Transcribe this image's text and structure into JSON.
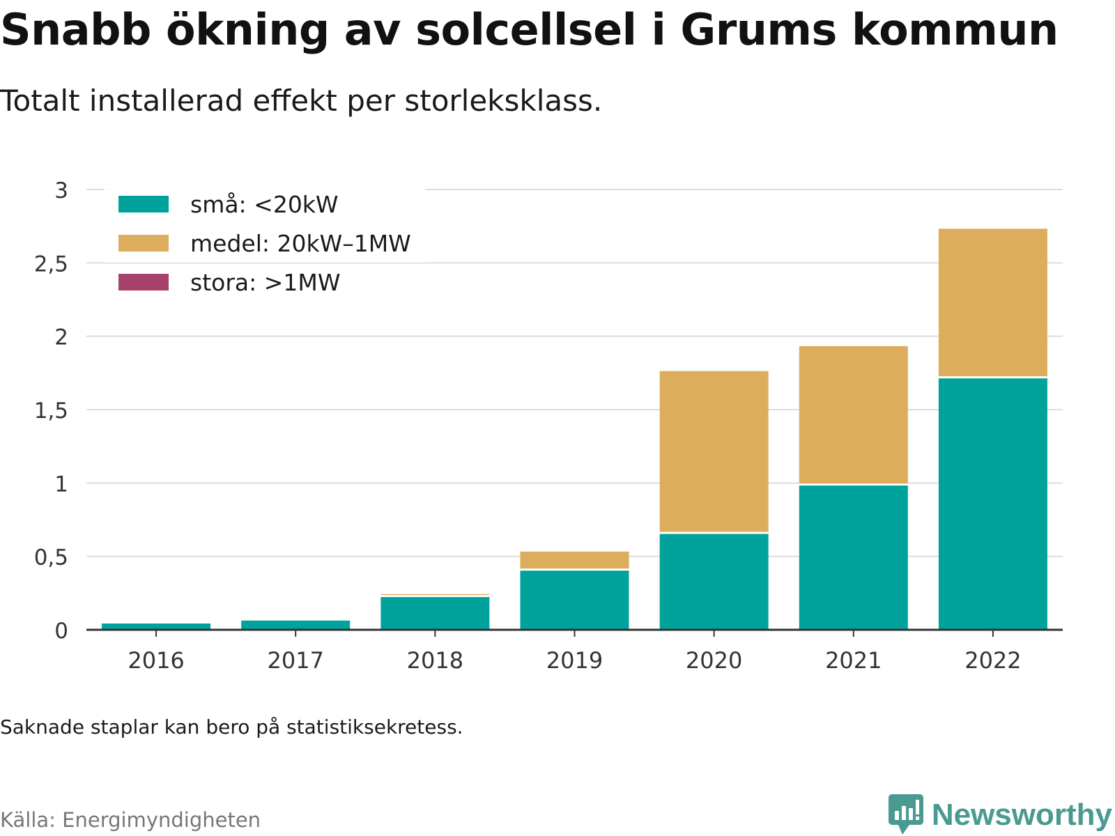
{
  "header": {
    "title": "Snabb ökning av solcellsel i Grums kommun",
    "subtitle": "Totalt installerad effekt per storleksklass."
  },
  "footer": {
    "note": "Saknade staplar kan bero på statistiksekretess.",
    "source": "Källa: Energimyndigheten",
    "brand": "Newsworthy"
  },
  "colors": {
    "small": "#00a39b",
    "medium": "#dcad5c",
    "large": "#a6416b",
    "brand": "#4a9a92",
    "grid": "#dddddd",
    "axis": "#333333"
  },
  "chart_data": {
    "type": "bar",
    "stacked": true,
    "categories": [
      "2016",
      "2017",
      "2018",
      "2019",
      "2020",
      "2021",
      "2022"
    ],
    "series": [
      {
        "name": "små: <20kW",
        "color": "#00a39b",
        "values": [
          0.05,
          0.07,
          0.23,
          0.41,
          0.66,
          0.99,
          1.72
        ]
      },
      {
        "name": "medel: 20kW–1MW",
        "color": "#dcad5c",
        "values": [
          0,
          0,
          0.02,
          0.13,
          1.11,
          0.95,
          1.02
        ]
      },
      {
        "name": "stora: >1MW",
        "color": "#a6416b",
        "values": [
          0,
          0,
          0,
          0,
          0,
          0,
          0
        ]
      }
    ],
    "ylim": [
      0,
      3
    ],
    "yticks": [
      0,
      0.5,
      1,
      1.5,
      2,
      2.5,
      3
    ],
    "ytick_labels": [
      "0",
      "0,5",
      "1",
      "1,5",
      "2",
      "2,5",
      "3"
    ],
    "xlabel": "",
    "ylabel": "",
    "grid": true,
    "legend_position": "top-left"
  }
}
